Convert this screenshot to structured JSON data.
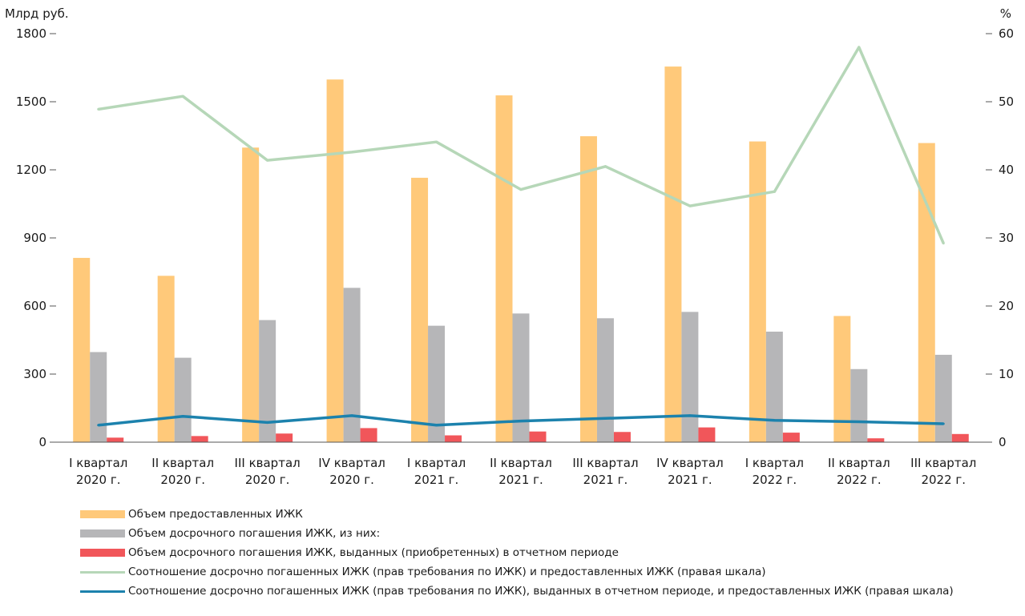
{
  "chart_data": {
    "type": "bar",
    "left_axis_unit": "Млрд руб.",
    "right_axis_unit": "%",
    "left_ylim": [
      0,
      1800
    ],
    "left_ticks": [
      "0",
      "300",
      "600",
      "900",
      "1200",
      "1500",
      "1800"
    ],
    "right_ylim": [
      0,
      60
    ],
    "right_ticks": [
      "0",
      "10",
      "20",
      "30",
      "40",
      "50",
      "60"
    ],
    "categories": [
      [
        "I квартал",
        "2020 г."
      ],
      [
        "II квартал",
        "2020 г."
      ],
      [
        "III квартал",
        "2020 г."
      ],
      [
        "IV квартал",
        "2020 г."
      ],
      [
        "I квартал",
        "2021 г."
      ],
      [
        "II квартал",
        "2021 г."
      ],
      [
        "III квартал",
        "2021 г."
      ],
      [
        "IV квартал",
        "2021 г."
      ],
      [
        "I квартал",
        "2022 г."
      ],
      [
        "II квартал",
        "2022 г."
      ],
      [
        "III квартал",
        "2022 г."
      ]
    ],
    "bar_series": [
      {
        "name": "Объем предоставленных ИЖК",
        "color": "#ffc97a",
        "values": [
          812,
          733,
          1298,
          1598,
          1165,
          1528,
          1348,
          1655,
          1325,
          556,
          1318
        ]
      },
      {
        "name": "Объем досрочного погашения ИЖК, из них:",
        "color": "#b6b6b8",
        "values": [
          397,
          372,
          538,
          680,
          513,
          567,
          546,
          574,
          487,
          322,
          385
        ]
      },
      {
        "name": "Объем досрочного погашения ИЖК, выданных (приобретенных) в отчетном периоде",
        "color": "#f1565a",
        "values": [
          20,
          27,
          38,
          62,
          30,
          47,
          45,
          65,
          42,
          17,
          36
        ]
      }
    ],
    "line_series": [
      {
        "name": "Соотношение досрочно погашенных ИЖК (прав требования по ИЖК) и предоставленных ИЖК (правая шкала)",
        "color": "#b6d7b8",
        "values": [
          48.9,
          50.8,
          41.4,
          42.6,
          44.1,
          37.1,
          40.5,
          34.7,
          36.8,
          58.0,
          29.2
        ]
      },
      {
        "name": "Соотношение досрочно погашенных ИЖК (прав требования по ИЖК), выданных в отчетном периоде, и предоставленных ИЖК  (правая шкала)",
        "color": "#1c82ad",
        "values": [
          2.5,
          3.8,
          2.9,
          3.9,
          2.5,
          3.1,
          3.5,
          3.9,
          3.2,
          3.0,
          2.7
        ]
      }
    ],
    "legend_position": "bottom-left",
    "grid": false
  }
}
